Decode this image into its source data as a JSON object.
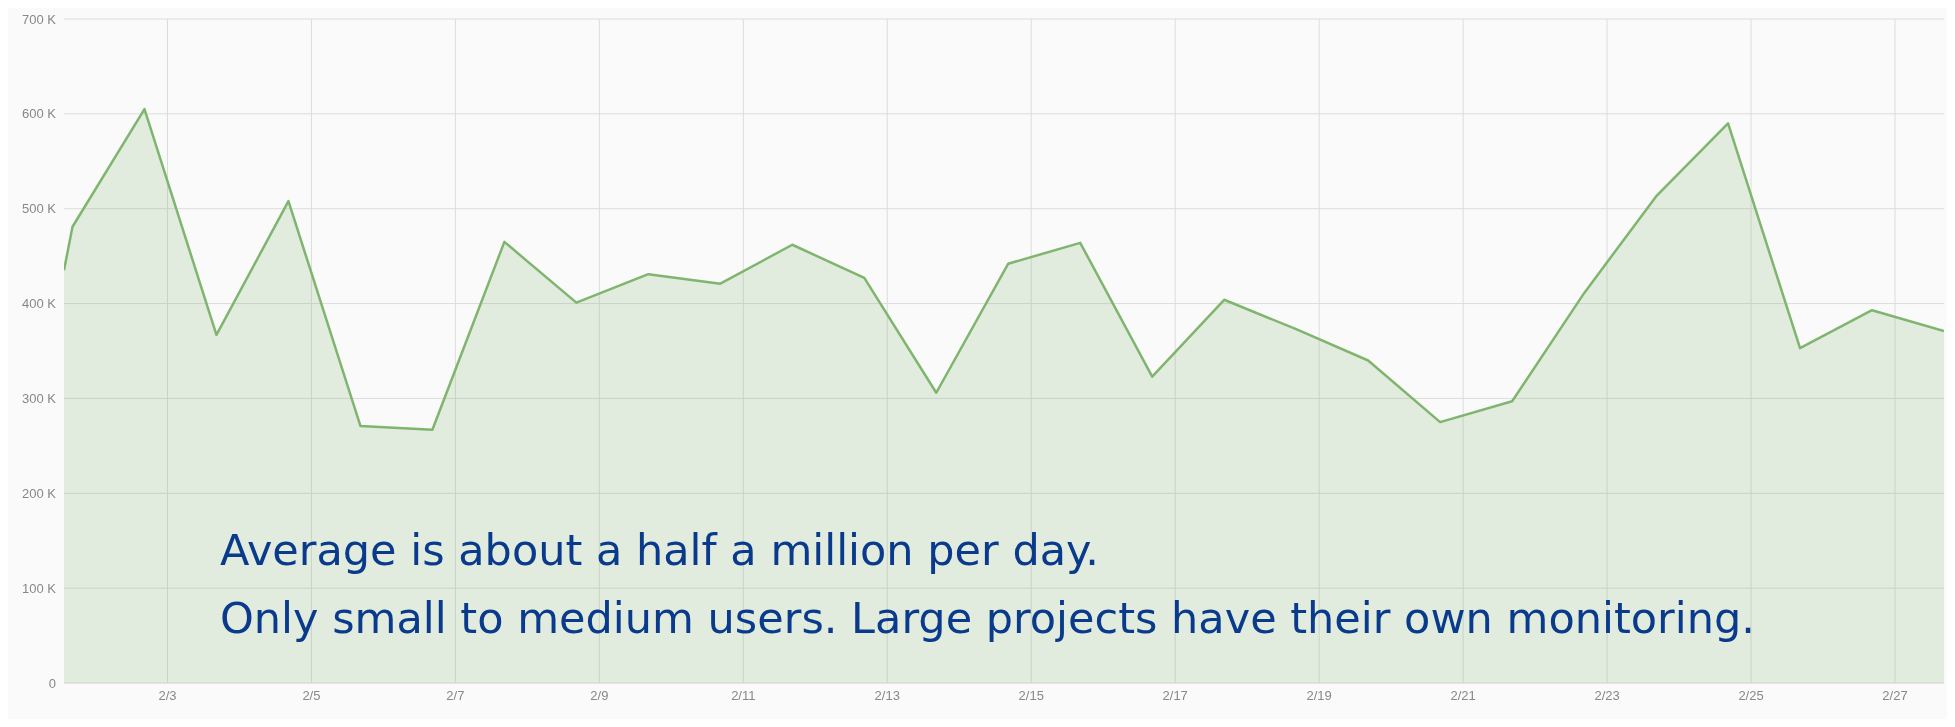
{
  "chart_data": {
    "type": "area",
    "x": [
      "--02-01T13:30",
      "--02-01T16:20",
      "--02-02T16:20",
      "--02-03T16:20",
      "--02-04T16:20",
      "--02-05T16:20",
      "--02-06T16:20",
      "--02-07T16:20",
      "--02-08T16:20",
      "--02-09T16:20",
      "--02-10T16:20",
      "--02-11T16:20",
      "--02-12T16:20",
      "--02-13T16:20",
      "--02-14T16:20",
      "--02-15T16:20",
      "--02-16T16:20",
      "--02-17T16:20",
      "--02-18T16:20",
      "--02-19T16:20",
      "--02-20T16:20",
      "--02-21T16:20",
      "--02-22T16:20",
      "--02-23T16:20",
      "--02-24T16:20",
      "--02-25T16:20",
      "--02-26T16:20",
      "--02-27T16:20"
    ],
    "series": [
      {
        "color": "#7fb56e",
        "values": [
          435000,
          481000,
          605000,
          367000,
          508000,
          271000,
          267000,
          465000,
          401000,
          431000,
          421000,
          462000,
          427000,
          306000,
          442000,
          464000,
          323000,
          404000,
          373000,
          340000,
          275000,
          297000,
          411000,
          513000,
          590000,
          353000,
          393000,
          371000
        ]
      }
    ],
    "xlim": [
      "--02-01T13:30",
      "--02-27T16:20"
    ],
    "xticks": [
      {
        "value": "--02-03",
        "label": "2/3"
      },
      {
        "value": "--02-05",
        "label": "2/5"
      },
      {
        "value": "--02-07",
        "label": "2/7"
      },
      {
        "value": "--02-09",
        "label": "2/9"
      },
      {
        "value": "--02-11",
        "label": "2/11"
      },
      {
        "value": "--02-13",
        "label": "2/13"
      },
      {
        "value": "--02-15",
        "label": "2/15"
      },
      {
        "value": "--02-17",
        "label": "2/17"
      },
      {
        "value": "--02-19",
        "label": "2/19"
      },
      {
        "value": "--02-21",
        "label": "2/21"
      },
      {
        "value": "--02-23",
        "label": "2/23"
      },
      {
        "value": "--02-25",
        "label": "2/25"
      },
      {
        "value": "--02-27",
        "label": "2/27"
      }
    ],
    "ylim": [
      0,
      700000
    ],
    "yticks": [
      0,
      {
        "value": 100000,
        "label": "100 K"
      },
      {
        "value": 200000,
        "label": "200 K"
      },
      {
        "value": 300000,
        "label": "300 K"
      },
      {
        "value": 400000,
        "label": "400 K"
      },
      {
        "value": 500000,
        "label": "500 K"
      },
      {
        "value": 600000,
        "label": "600 K"
      },
      {
        "value": 700000,
        "label": "700 K"
      }
    ],
    "grid": true,
    "marker": "none",
    "line_style": "solid",
    "annotations": [
      "Average is about a half a million per day.",
      "Only small to medium users. Large projects have their own monitoring."
    ]
  }
}
